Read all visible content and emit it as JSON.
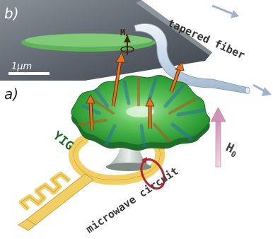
{
  "panels": {
    "a": {
      "label": "a)"
    },
    "b": {
      "label": "b)",
      "scale_bar": "1μm"
    }
  },
  "labels": {
    "ms": "M",
    "ms_sub": "s",
    "tapered_fiber": "tapered fiber",
    "yig": "YIG",
    "h0": "H",
    "h0_sub": "0",
    "microwave_circuit": "microwave circuit"
  },
  "colors": {
    "disk_green": "#35a63c",
    "arrow_orange": "#e8731c",
    "circuit_yellow": "#f2cf63",
    "loop_red": "#b8232f",
    "field_pink": "#d9a6c4",
    "fiber_blue": "#c7d9ea",
    "sem_background": "#5e6670"
  }
}
